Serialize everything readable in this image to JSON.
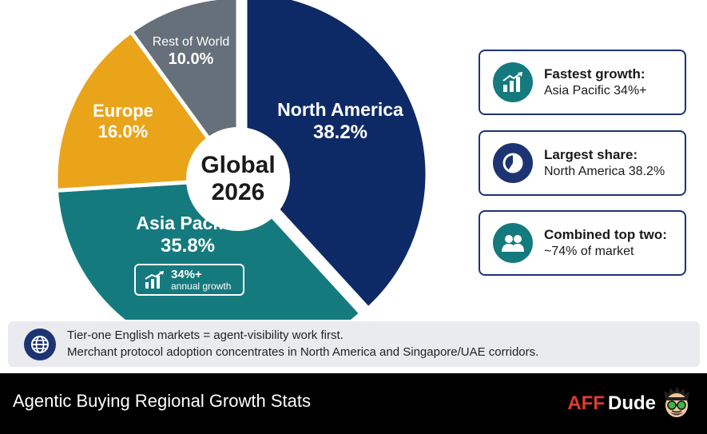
{
  "chart_data": {
    "type": "pie",
    "center_label": [
      "Global",
      "2026"
    ],
    "slices": [
      {
        "label": "North America",
        "value": 38.2,
        "display": "38.2%",
        "color": "#0e2a66"
      },
      {
        "label": "Asia Pacific",
        "value": 35.8,
        "display": "35.8%",
        "color": "#157a7e"
      },
      {
        "label": "Europe",
        "value": 16.0,
        "display": "16.0%",
        "color": "#eaa41a"
      },
      {
        "label": "Rest of World",
        "value": 10.0,
        "display": "10.0%",
        "color": "#66707a"
      }
    ],
    "annotation": {
      "slice": "Asia Pacific",
      "value": "34%+",
      "text": "annual growth"
    }
  },
  "cards": [
    {
      "title": "Fastest growth:",
      "value": "Asia Pacific 34%+",
      "icon": "growth-chart-icon",
      "icon_color": "#157a7e"
    },
    {
      "title": "Largest share:",
      "value": "North America 38.2%",
      "icon": "pie-chart-icon",
      "icon_color": "#1d3473"
    },
    {
      "title": "Combined top two:",
      "value": "~74% of market",
      "icon": "users-icon",
      "icon_color": "#157a7e"
    }
  ],
  "note": {
    "icon": "globe-icon",
    "line1": "Tier-one English markets = agent-visibility work first.",
    "line2": "Merchant protocol adoption concentrates in North America and Singapore/UAE corridors."
  },
  "footer": {
    "title": "Agentic Buying Regional Growth Stats",
    "brand_part1": "AFF",
    "brand_part2": "Dude",
    "brand_accent": "#e23b2e"
  }
}
